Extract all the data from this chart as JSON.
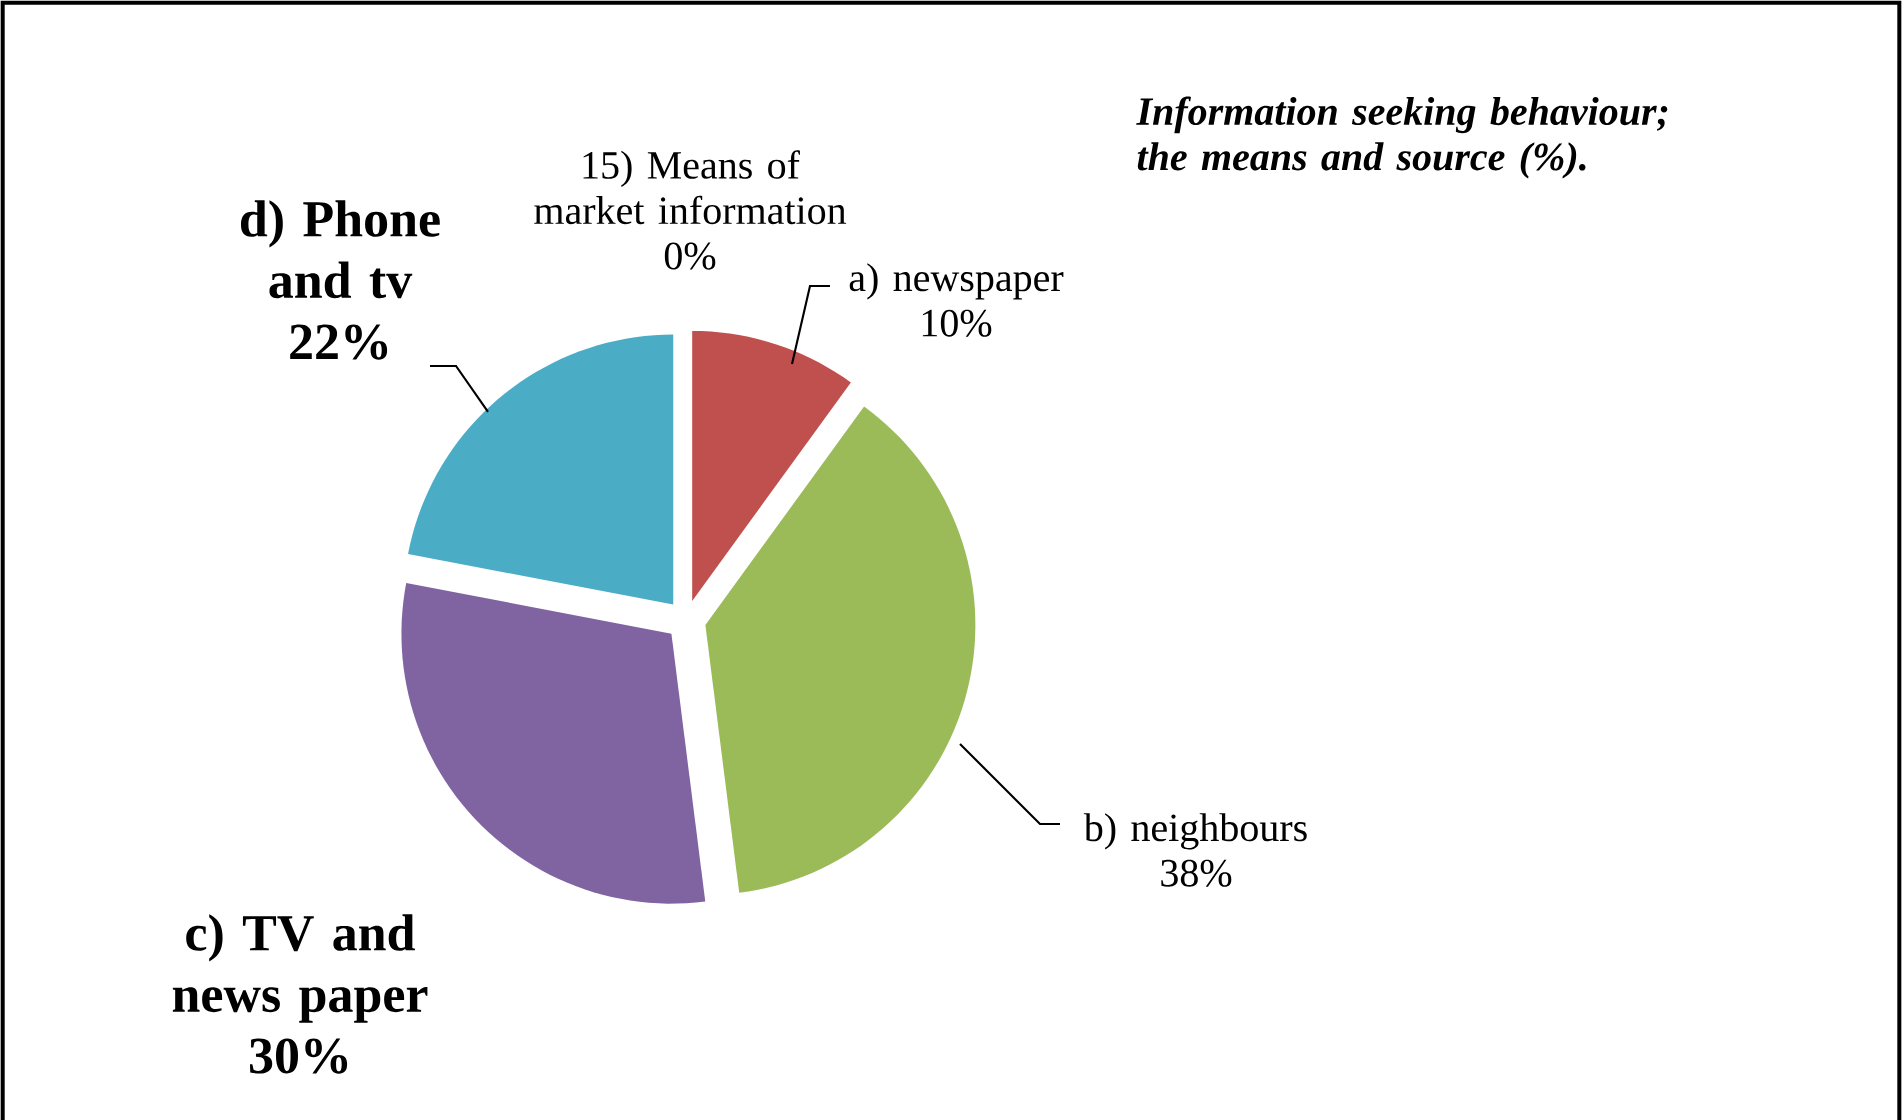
{
  "chart_data": {
    "type": "pie",
    "title": "Information seeking behaviour; the means and source (%).",
    "categories": [
      "15) Means of market information",
      "a) newspaper",
      "b) neighbours",
      "c) TV and news paper",
      "d) Phone and tv"
    ],
    "values": [
      0,
      10,
      38,
      30,
      22
    ],
    "colors": [
      "#4f81bd",
      "#c0504d",
      "#9bbb59",
      "#8064a2",
      "#4bacc6"
    ],
    "value_labels": [
      "0%",
      "10%",
      "38%",
      "30%",
      "22%"
    ]
  }
}
